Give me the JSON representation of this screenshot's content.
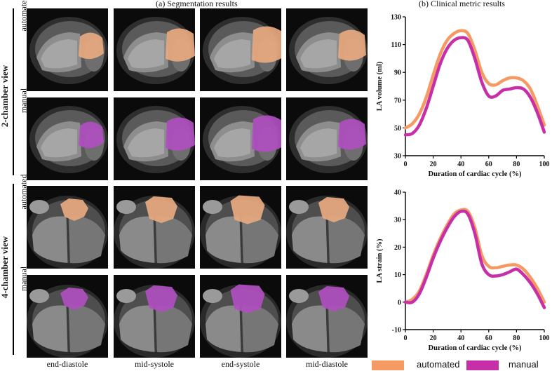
{
  "titles": {
    "segmentation": "(a) Segmentation results",
    "clinical": "(b) Clinical metric results"
  },
  "views": {
    "two_chamber": "2-chamber view",
    "four_chamber": "4-chamber view"
  },
  "row_labels": [
    "automated",
    "manual",
    "automated",
    "manual"
  ],
  "column_labels": [
    "end-diastole",
    "mid-systole",
    "end-systole",
    "mid-diastole"
  ],
  "colors": {
    "automated": "#F59A63",
    "manual": "#C72FA8",
    "automated_overlay": "#E8A97F",
    "manual_overlay": "#B04FC0"
  },
  "legend": {
    "automated": "automated",
    "manual": "manual"
  },
  "chart_data": [
    {
      "type": "line",
      "xlabel": "Duration of cardiac cycle (%)",
      "ylabel": "LA volume (ml)",
      "xlim": [
        0,
        100
      ],
      "ylim": [
        30,
        130
      ],
      "xticks": [
        0,
        20,
        40,
        60,
        80,
        100
      ],
      "yticks": [
        30,
        50,
        70,
        90,
        110,
        130
      ],
      "x": [
        0,
        5,
        10,
        15,
        20,
        25,
        30,
        35,
        40,
        45,
        50,
        55,
        60,
        65,
        70,
        75,
        80,
        85,
        90,
        95,
        100
      ],
      "series": [
        {
          "name": "automated",
          "values": [
            50,
            53,
            60,
            72,
            88,
            103,
            113,
            118,
            120,
            118,
            106,
            90,
            82,
            81,
            84,
            86,
            86,
            84,
            78,
            66,
            52
          ]
        },
        {
          "name": "manual",
          "values": [
            45,
            46,
            52,
            64,
            80,
            96,
            107,
            113,
            115,
            113,
            100,
            83,
            73,
            73,
            77,
            78,
            79,
            78,
            72,
            61,
            47
          ]
        }
      ]
    },
    {
      "type": "line",
      "xlabel": "Duration of cardiac cycle (%)",
      "ylabel": "LA strain (%)",
      "xlim": [
        0,
        100
      ],
      "ylim": [
        -10,
        40
      ],
      "xticks": [
        0,
        20,
        40,
        60,
        80,
        100
      ],
      "yticks": [
        -10,
        0,
        10,
        20,
        30,
        40
      ],
      "x": [
        0,
        5,
        10,
        15,
        20,
        25,
        30,
        35,
        40,
        45,
        50,
        55,
        60,
        65,
        70,
        75,
        80,
        85,
        90,
        95,
        100
      ],
      "series": [
        {
          "name": "automated",
          "values": [
            0,
            1,
            4,
            10,
            17,
            23,
            28,
            32,
            33.5,
            33,
            27,
            17,
            13,
            12.5,
            13,
            13.5,
            13.5,
            12,
            9,
            5,
            0
          ]
        },
        {
          "name": "manual",
          "values": [
            0,
            0,
            3,
            9,
            16,
            22,
            27,
            31,
            33,
            32,
            25,
            14,
            10,
            9.5,
            10,
            11,
            12,
            10,
            7,
            3,
            -2
          ]
        }
      ]
    }
  ]
}
